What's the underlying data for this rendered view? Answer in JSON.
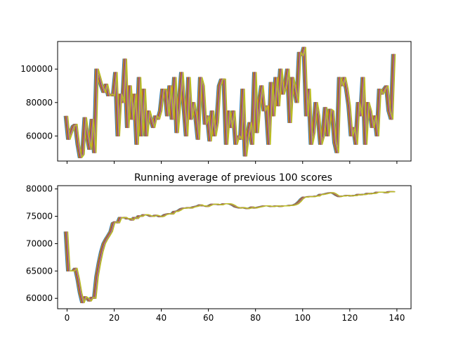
{
  "colors": {
    "background": "#ffffff",
    "axes": "#000000",
    "series": [
      "#1f77b4",
      "#ff7f0e",
      "#2ca02c",
      "#d62728",
      "#9467bd",
      "#8c564b",
      "#e377c2",
      "#7f7f7f",
      "#bcbd22"
    ]
  },
  "chart_data": [
    {
      "type": "line",
      "title": "",
      "xlabel": "",
      "ylabel": "",
      "xlim": [
        -4,
        146
      ],
      "ylim": [
        45000,
        116500
      ],
      "xticks": [
        0,
        20,
        40,
        60,
        80,
        100,
        120,
        140
      ],
      "xtick_labels_visible": false,
      "yticks": [
        60000,
        80000,
        100000
      ],
      "ytick_labels": [
        "60000",
        "80000",
        "100000"
      ],
      "grid": false,
      "legend": "none",
      "note_series": "several overlapping series of identical scores, drawn with small x offsets; topmost series olive",
      "series_count": 9,
      "x": [
        0,
        1,
        2,
        3,
        4,
        5,
        6,
        7,
        8,
        9,
        10,
        11,
        12,
        13,
        14,
        15,
        16,
        17,
        18,
        19,
        20,
        21,
        22,
        23,
        24,
        25,
        26,
        27,
        28,
        29,
        30,
        31,
        32,
        33,
        34,
        35,
        36,
        37,
        38,
        39,
        40,
        41,
        42,
        43,
        44,
        45,
        46,
        47,
        48,
        49,
        50,
        51,
        52,
        53,
        54,
        55,
        56,
        57,
        58,
        59,
        60,
        61,
        62,
        63,
        64,
        65,
        66,
        67,
        68,
        69,
        70,
        71,
        72,
        73,
        74,
        75,
        76,
        77,
        78,
        79,
        80,
        81,
        82,
        83,
        84,
        85,
        86,
        87,
        88,
        89,
        90,
        91,
        92,
        93,
        94,
        95,
        96,
        97,
        98,
        99,
        100,
        101,
        102,
        103,
        104,
        105,
        106,
        107,
        108,
        109,
        110,
        111,
        112,
        113,
        114,
        115,
        116,
        117,
        118,
        119,
        120,
        121,
        122,
        123,
        124,
        125,
        126,
        127,
        128,
        129,
        130,
        131,
        132,
        133,
        134,
        135,
        136,
        137,
        138,
        139
      ],
      "values": [
        72000,
        58000,
        62000,
        66000,
        67000,
        55000,
        47000,
        49000,
        71000,
        60000,
        52000,
        70000,
        50000,
        100000,
        95000,
        90000,
        86000,
        91000,
        84000,
        85000,
        84000,
        98000,
        60000,
        85000,
        80000,
        106000,
        65000,
        90000,
        70000,
        85000,
        55000,
        95000,
        60000,
        88000,
        60000,
        75000,
        70000,
        65000,
        72000,
        70000,
        75000,
        88000,
        88000,
        72000,
        90000,
        70000,
        95000,
        62000,
        80000,
        98000,
        78000,
        60000,
        95000,
        70000,
        80000,
        72000,
        58000,
        95000,
        90000,
        67000,
        72000,
        57000,
        75000,
        60000,
        68000,
        90000,
        94000,
        94000,
        55000,
        75000,
        65000,
        75000,
        55000,
        60000,
        58000,
        88000,
        48000,
        60000,
        68000,
        55000,
        98000,
        62000,
        80000,
        90000,
        75000,
        78000,
        55000,
        92000,
        72000,
        95000,
        78000,
        100000,
        85000,
        90000,
        100000,
        68000,
        95000,
        88000,
        80000,
        110000,
        108000,
        113000,
        72000,
        88000,
        55000,
        62000,
        80000,
        72000,
        55000,
        60000,
        77000,
        60000,
        76000,
        75000,
        56000,
        50000,
        95000,
        90000,
        95000,
        88000,
        78000,
        60000,
        65000,
        55000,
        80000,
        72000,
        95000,
        55000,
        80000,
        75000,
        65000,
        72000,
        60000,
        88000,
        85000,
        88000,
        90000,
        75000,
        70000,
        109000
      ]
    },
    {
      "type": "line",
      "title": "Running average of previous 100 scores",
      "xlabel": "",
      "ylabel": "",
      "xlim": [
        -4,
        146
      ],
      "ylim": [
        58100,
        80600
      ],
      "xticks": [
        0,
        20,
        40,
        60,
        80,
        100,
        120,
        140
      ],
      "xtick_labels": [
        "0",
        "20",
        "40",
        "60",
        "80",
        "100",
        "120",
        "140"
      ],
      "yticks": [
        60000,
        65000,
        70000,
        75000,
        80000
      ],
      "ytick_labels": [
        "60000",
        "65000",
        "70000",
        "75000",
        "80000"
      ],
      "grid": false,
      "legend": "none",
      "series_count": 9,
      "x": [
        0,
        1,
        2,
        3,
        4,
        5,
        6,
        7,
        8,
        9,
        10,
        11,
        12,
        13,
        14,
        15,
        16,
        17,
        18,
        19,
        20,
        21,
        22,
        23,
        24,
        25,
        26,
        27,
        28,
        29,
        30,
        31,
        32,
        33,
        34,
        35,
        36,
        37,
        38,
        39,
        40,
        41,
        42,
        43,
        44,
        45,
        46,
        47,
        48,
        49,
        50,
        51,
        52,
        53,
        54,
        55,
        56,
        57,
        58,
        59,
        60,
        61,
        62,
        63,
        64,
        65,
        66,
        67,
        68,
        69,
        70,
        71,
        72,
        73,
        74,
        75,
        76,
        77,
        78,
        79,
        80,
        81,
        82,
        83,
        84,
        85,
        86,
        87,
        88,
        89,
        90,
        91,
        92,
        93,
        94,
        95,
        96,
        97,
        98,
        99,
        100,
        101,
        102,
        103,
        104,
        105,
        106,
        107,
        108,
        109,
        110,
        111,
        112,
        113,
        114,
        115,
        116,
        117,
        118,
        119,
        120,
        121,
        122,
        123,
        124,
        125,
        126,
        127,
        128,
        129,
        130,
        131,
        132,
        133,
        134,
        135,
        136,
        137,
        138,
        139
      ],
      "values": [
        72200,
        65000,
        65000,
        65000,
        65500,
        63500,
        61000,
        59200,
        60300,
        60000,
        59500,
        60200,
        60000,
        64000,
        66500,
        68500,
        70000,
        70800,
        71500,
        72200,
        73800,
        74000,
        73800,
        74800,
        74700,
        74800,
        74500,
        74600,
        74300,
        74800,
        74600,
        75100,
        75000,
        75300,
        75300,
        75200,
        75000,
        75000,
        75200,
        75100,
        74900,
        75000,
        75300,
        75400,
        75500,
        75400,
        75900,
        75900,
        76100,
        76400,
        76500,
        76500,
        76600,
        76500,
        76700,
        76800,
        76900,
        77100,
        76900,
        76900,
        76800,
        77000,
        77200,
        77200,
        77200,
        77100,
        77100,
        77300,
        77300,
        77300,
        77200,
        77000,
        76700,
        76600,
        76500,
        76600,
        76500,
        76400,
        76500,
        76700,
        76500,
        76600,
        76700,
        76800,
        76900,
        76900,
        76900,
        76800,
        76800,
        76900,
        76900,
        76800,
        76900,
        76900,
        76900,
        77000,
        77000,
        77100,
        77300,
        77700,
        78200,
        78500,
        78500,
        78600,
        78600,
        78600,
        78700,
        78700,
        79000,
        79000,
        79100,
        79200,
        79300,
        79300,
        79100,
        78800,
        78600,
        78700,
        78700,
        78800,
        78800,
        78700,
        78800,
        78800,
        79000,
        78900,
        79000,
        79000,
        79200,
        79100,
        79200,
        79200,
        79400,
        79400,
        79400,
        79400,
        79300,
        79500,
        79500,
        79500
      ]
    }
  ]
}
